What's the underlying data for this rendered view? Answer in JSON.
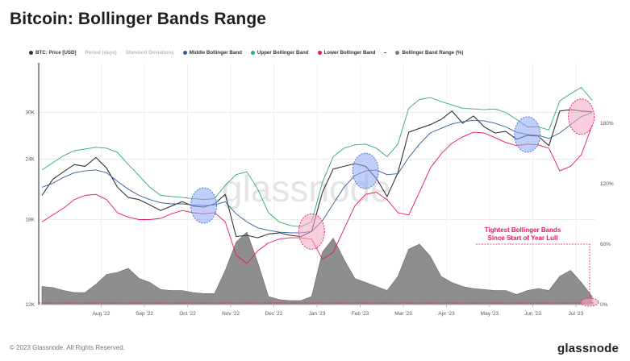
{
  "page": {
    "title": "Bitcoin: Bollinger Bands Range",
    "footer": "© 2023 Glassnode. All Rights Reserved.",
    "brand": "glassnode",
    "watermark": "glassnode"
  },
  "legend": [
    {
      "label": "BTC: Price [USD]",
      "color": "#333333",
      "marker": "dot",
      "muted": false
    },
    {
      "label": "Period (days)",
      "color": "#cccccc",
      "marker": "none",
      "muted": true
    },
    {
      "label": "Standard Deviations",
      "color": "#cccccc",
      "marker": "none",
      "muted": true
    },
    {
      "label": "Middle Bollinger Band",
      "color": "#2f5f98",
      "marker": "dot",
      "muted": false
    },
    {
      "label": "Upper Bollinger Band",
      "color": "#2ea87e",
      "marker": "dot",
      "muted": false
    },
    {
      "label": "Lower Bollinger Band",
      "color": "#e8175d",
      "marker": "dot",
      "muted": false
    },
    {
      "label": "",
      "color": "#555555",
      "marker": "dash",
      "muted": false
    },
    {
      "label": "Bollinger Band Range (%)",
      "color": "#7a7a7a",
      "marker": "dot",
      "muted": false
    }
  ],
  "chart_data": {
    "type": "line",
    "title": "Bitcoin: Bollinger Bands Range",
    "x_ticks": [
      "Aug '22",
      "Sep '22",
      "Oct '22",
      "Nov '22",
      "Dec '22",
      "Jan '23",
      "Feb '23",
      "Mar '23",
      "Apr '23",
      "May '23",
      "Jun '23",
      "Jul '23"
    ],
    "y_left": {
      "scale": "log",
      "ticks": [
        "12K",
        "18K",
        "24K",
        "30K"
      ],
      "tick_values": [
        12000,
        18000,
        24000,
        30000
      ],
      "range": [
        12000,
        38000
      ]
    },
    "y_right": {
      "ticks": [
        "0%",
        "60%",
        "120%",
        "180%"
      ],
      "tick_values": [
        0,
        60,
        120,
        180
      ],
      "range": [
        0,
        240
      ]
    },
    "grid": true,
    "legend_position": "top",
    "annotation": {
      "text_lines": [
        "Tightest Bollinger Bands",
        "Since Start of Year Lull"
      ],
      "color": "#e8175d"
    },
    "x_weeks": [
      "Jul '22 wk1",
      "Jul '22 wk2",
      "Jul '22 wk3",
      "Jul '22 wk4",
      "Aug '22 wk1",
      "Aug '22 wk2",
      "Aug '22 wk3",
      "Aug '22 wk4",
      "Sep '22 wk1",
      "Sep '22 wk2",
      "Sep '22 wk3",
      "Sep '22 wk4",
      "Oct '22 wk1",
      "Oct '22 wk2",
      "Oct '22 wk3",
      "Oct '22 wk4",
      "Nov '22 wk1",
      "Nov '22 wk2",
      "Nov '22 wk3",
      "Nov '22 wk4",
      "Dec '22 wk1",
      "Dec '22 wk2",
      "Dec '22 wk3",
      "Dec '22 wk4",
      "Jan '23 wk1",
      "Jan '23 wk2",
      "Jan '23 wk3",
      "Jan '23 wk4",
      "Feb '23 wk1",
      "Feb '23 wk2",
      "Feb '23 wk3",
      "Feb '23 wk4",
      "Mar '23 wk1",
      "Mar '23 wk2",
      "Mar '23 wk3",
      "Mar '23 wk4",
      "Apr '23 wk1",
      "Apr '23 wk2",
      "Apr '23 wk3",
      "Apr '23 wk4",
      "May '23 wk1",
      "May '23 wk2",
      "May '23 wk3",
      "May '23 wk4",
      "Jun '23 wk1",
      "Jun '23 wk2",
      "Jun '23 wk3",
      "Jun '23 wk4",
      "Jul '23 wk1",
      "Jul '23 wk2",
      "Jul '23 wk3",
      "Jul '23 wk4"
    ],
    "series": [
      {
        "name": "BTC: Price [USD]",
        "color": "#333333",
        "axis": "left",
        "values": [
          20200,
          21800,
          22600,
          23400,
          23200,
          24200,
          23000,
          21000,
          20000,
          19800,
          19300,
          18800,
          19200,
          19600,
          19200,
          19100,
          19400,
          20300,
          16600,
          16700,
          16500,
          16800,
          16900,
          16700,
          16600,
          17000,
          20500,
          22900,
          23200,
          23500,
          23200,
          21900,
          20100,
          22500,
          27300,
          27800,
          28300,
          29000,
          30200,
          28500,
          29500,
          28000,
          27200,
          27400,
          26400,
          26900,
          26800,
          25600,
          30200,
          30400,
          30200,
          30100
        ]
      },
      {
        "name": "Middle Bollinger Band",
        "color": "#2f5f98",
        "axis": "left",
        "values": [
          21000,
          21400,
          22000,
          22500,
          22700,
          22800,
          22500,
          21600,
          20800,
          20200,
          19800,
          19500,
          19400,
          19400,
          19300,
          19250,
          19300,
          19600,
          18500,
          17800,
          17300,
          17100,
          16950,
          16900,
          16900,
          17000,
          17900,
          19400,
          21000,
          22200,
          22700,
          22800,
          22300,
          22400,
          24200,
          25800,
          27200,
          27800,
          28400,
          28700,
          28900,
          28800,
          28500,
          28000,
          27300,
          27000,
          26900,
          26500,
          27200,
          28300,
          29400,
          30000
        ]
      },
      {
        "name": "Upper Bollinger Band",
        "color": "#2ea87e",
        "axis": "left",
        "values": [
          22800,
          23600,
          24400,
          25000,
          25200,
          25400,
          25300,
          24800,
          23400,
          22200,
          21000,
          20200,
          20100,
          20000,
          19900,
          19800,
          19900,
          21200,
          22300,
          22600,
          20800,
          18600,
          17800,
          17500,
          17400,
          17800,
          21500,
          24300,
          25300,
          25700,
          25800,
          25300,
          24300,
          25800,
          30600,
          31900,
          32200,
          31600,
          31100,
          30600,
          30500,
          30400,
          30500,
          30000,
          29000,
          28000,
          28000,
          27600,
          31700,
          32800,
          33800,
          31800
        ]
      },
      {
        "name": "Lower Bollinger Band",
        "color": "#e8175d",
        "axis": "left",
        "values": [
          17800,
          18400,
          19000,
          19800,
          20200,
          20300,
          19800,
          18600,
          18200,
          18000,
          18000,
          18100,
          18500,
          18800,
          18600,
          18500,
          18600,
          17800,
          15200,
          14600,
          15500,
          16100,
          16400,
          16500,
          16500,
          16400,
          14900,
          15400,
          17200,
          19200,
          20300,
          20500,
          19800,
          18600,
          18400,
          20500,
          23000,
          24600,
          25900,
          26700,
          27300,
          27200,
          26600,
          26000,
          25600,
          25800,
          25700,
          25300,
          22700,
          23200,
          24500,
          28200
        ]
      },
      {
        "name": "Bollinger Band Range (%)",
        "color": "#7a7a7a",
        "axis": "right",
        "values": [
          18,
          17,
          14,
          12,
          12,
          20,
          30,
          32,
          36,
          26,
          22,
          15,
          14,
          14,
          12,
          11,
          11,
          34,
          62,
          72,
          42,
          8,
          5,
          4,
          4,
          8,
          52,
          66,
          45,
          26,
          22,
          18,
          14,
          28,
          55,
          60,
          48,
          28,
          22,
          18,
          16,
          15,
          14,
          14,
          10,
          14,
          16,
          14,
          28,
          34,
          22,
          8
        ]
      }
    ]
  }
}
